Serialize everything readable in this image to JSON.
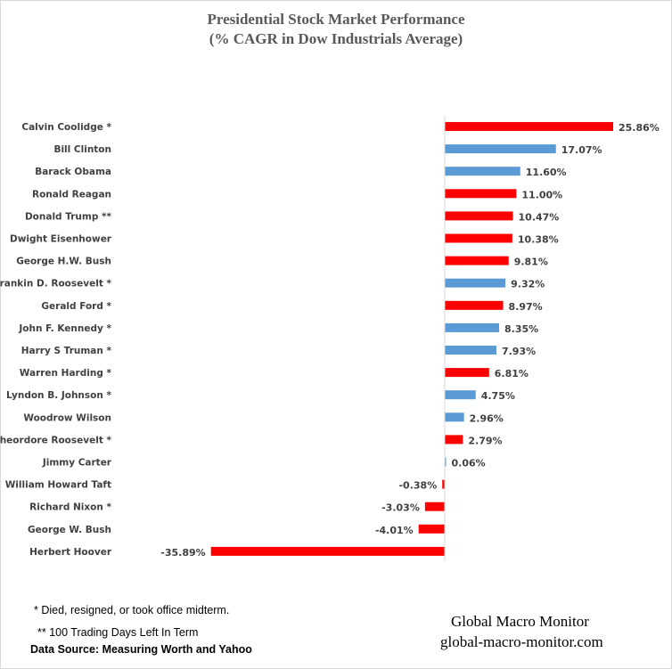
{
  "chart_data": {
    "type": "bar",
    "orientation": "horizontal",
    "title": "Presidential Stock Market Performance",
    "subtitle": "(% CAGR in Dow Industrials Average)",
    "xlabel": "",
    "ylabel": "",
    "grid": false,
    "categories": [
      "Calvin Coolidge *",
      "Bill Clinton",
      "Barack Obama",
      "Ronald Reagan",
      "Donald Trump **",
      "Dwight Eisenhower",
      "George H.W. Bush",
      "Frankin D. Roosevelt *",
      "Gerald Ford *",
      "John F. Kennedy *",
      "Harry S Truman *",
      "Warren Harding *",
      "Lyndon B. Johnson *",
      "Woodrow Wilson",
      "Theordore Roosevelt *",
      "Jimmy Carter",
      "William Howard Taft",
      "Richard Nixon *",
      "George W. Bush",
      "Herbert Hoover"
    ],
    "values": [
      25.86,
      17.07,
      11.6,
      11.0,
      10.47,
      10.38,
      9.81,
      9.32,
      8.97,
      8.35,
      7.93,
      6.81,
      4.75,
      2.96,
      2.79,
      0.06,
      -0.38,
      -3.03,
      -4.01,
      -35.89
    ],
    "labels": [
      "25.86%",
      "17.07%",
      "11.60%",
      "11.00%",
      "10.47%",
      "10.38%",
      "9.81%",
      "9.32%",
      "8.97%",
      "8.35%",
      "7.93%",
      "6.81%",
      "4.75%",
      "2.96%",
      "2.79%",
      "0.06%",
      "-0.38%",
      "-3.03%",
      "-4.01%",
      "-35.89%"
    ],
    "party": [
      "R",
      "D",
      "D",
      "R",
      "R",
      "R",
      "R",
      "D",
      "R",
      "D",
      "D",
      "R",
      "D",
      "D",
      "R",
      "D",
      "R",
      "R",
      "R",
      "R"
    ],
    "colors": {
      "R": "#ff0000",
      "D": "#5b9bd5"
    },
    "xlim": [
      -35.89,
      25.86
    ]
  },
  "notes": {
    "footnote1": "* Died, resigned, or took office midterm.",
    "footnote2": "** 100 Trading Days Left In Term",
    "source": "Data Source:  Measuring Worth and Yahoo"
  },
  "brand": {
    "name": "Global Macro Monitor",
    "url": "global-macro-monitor.com"
  }
}
